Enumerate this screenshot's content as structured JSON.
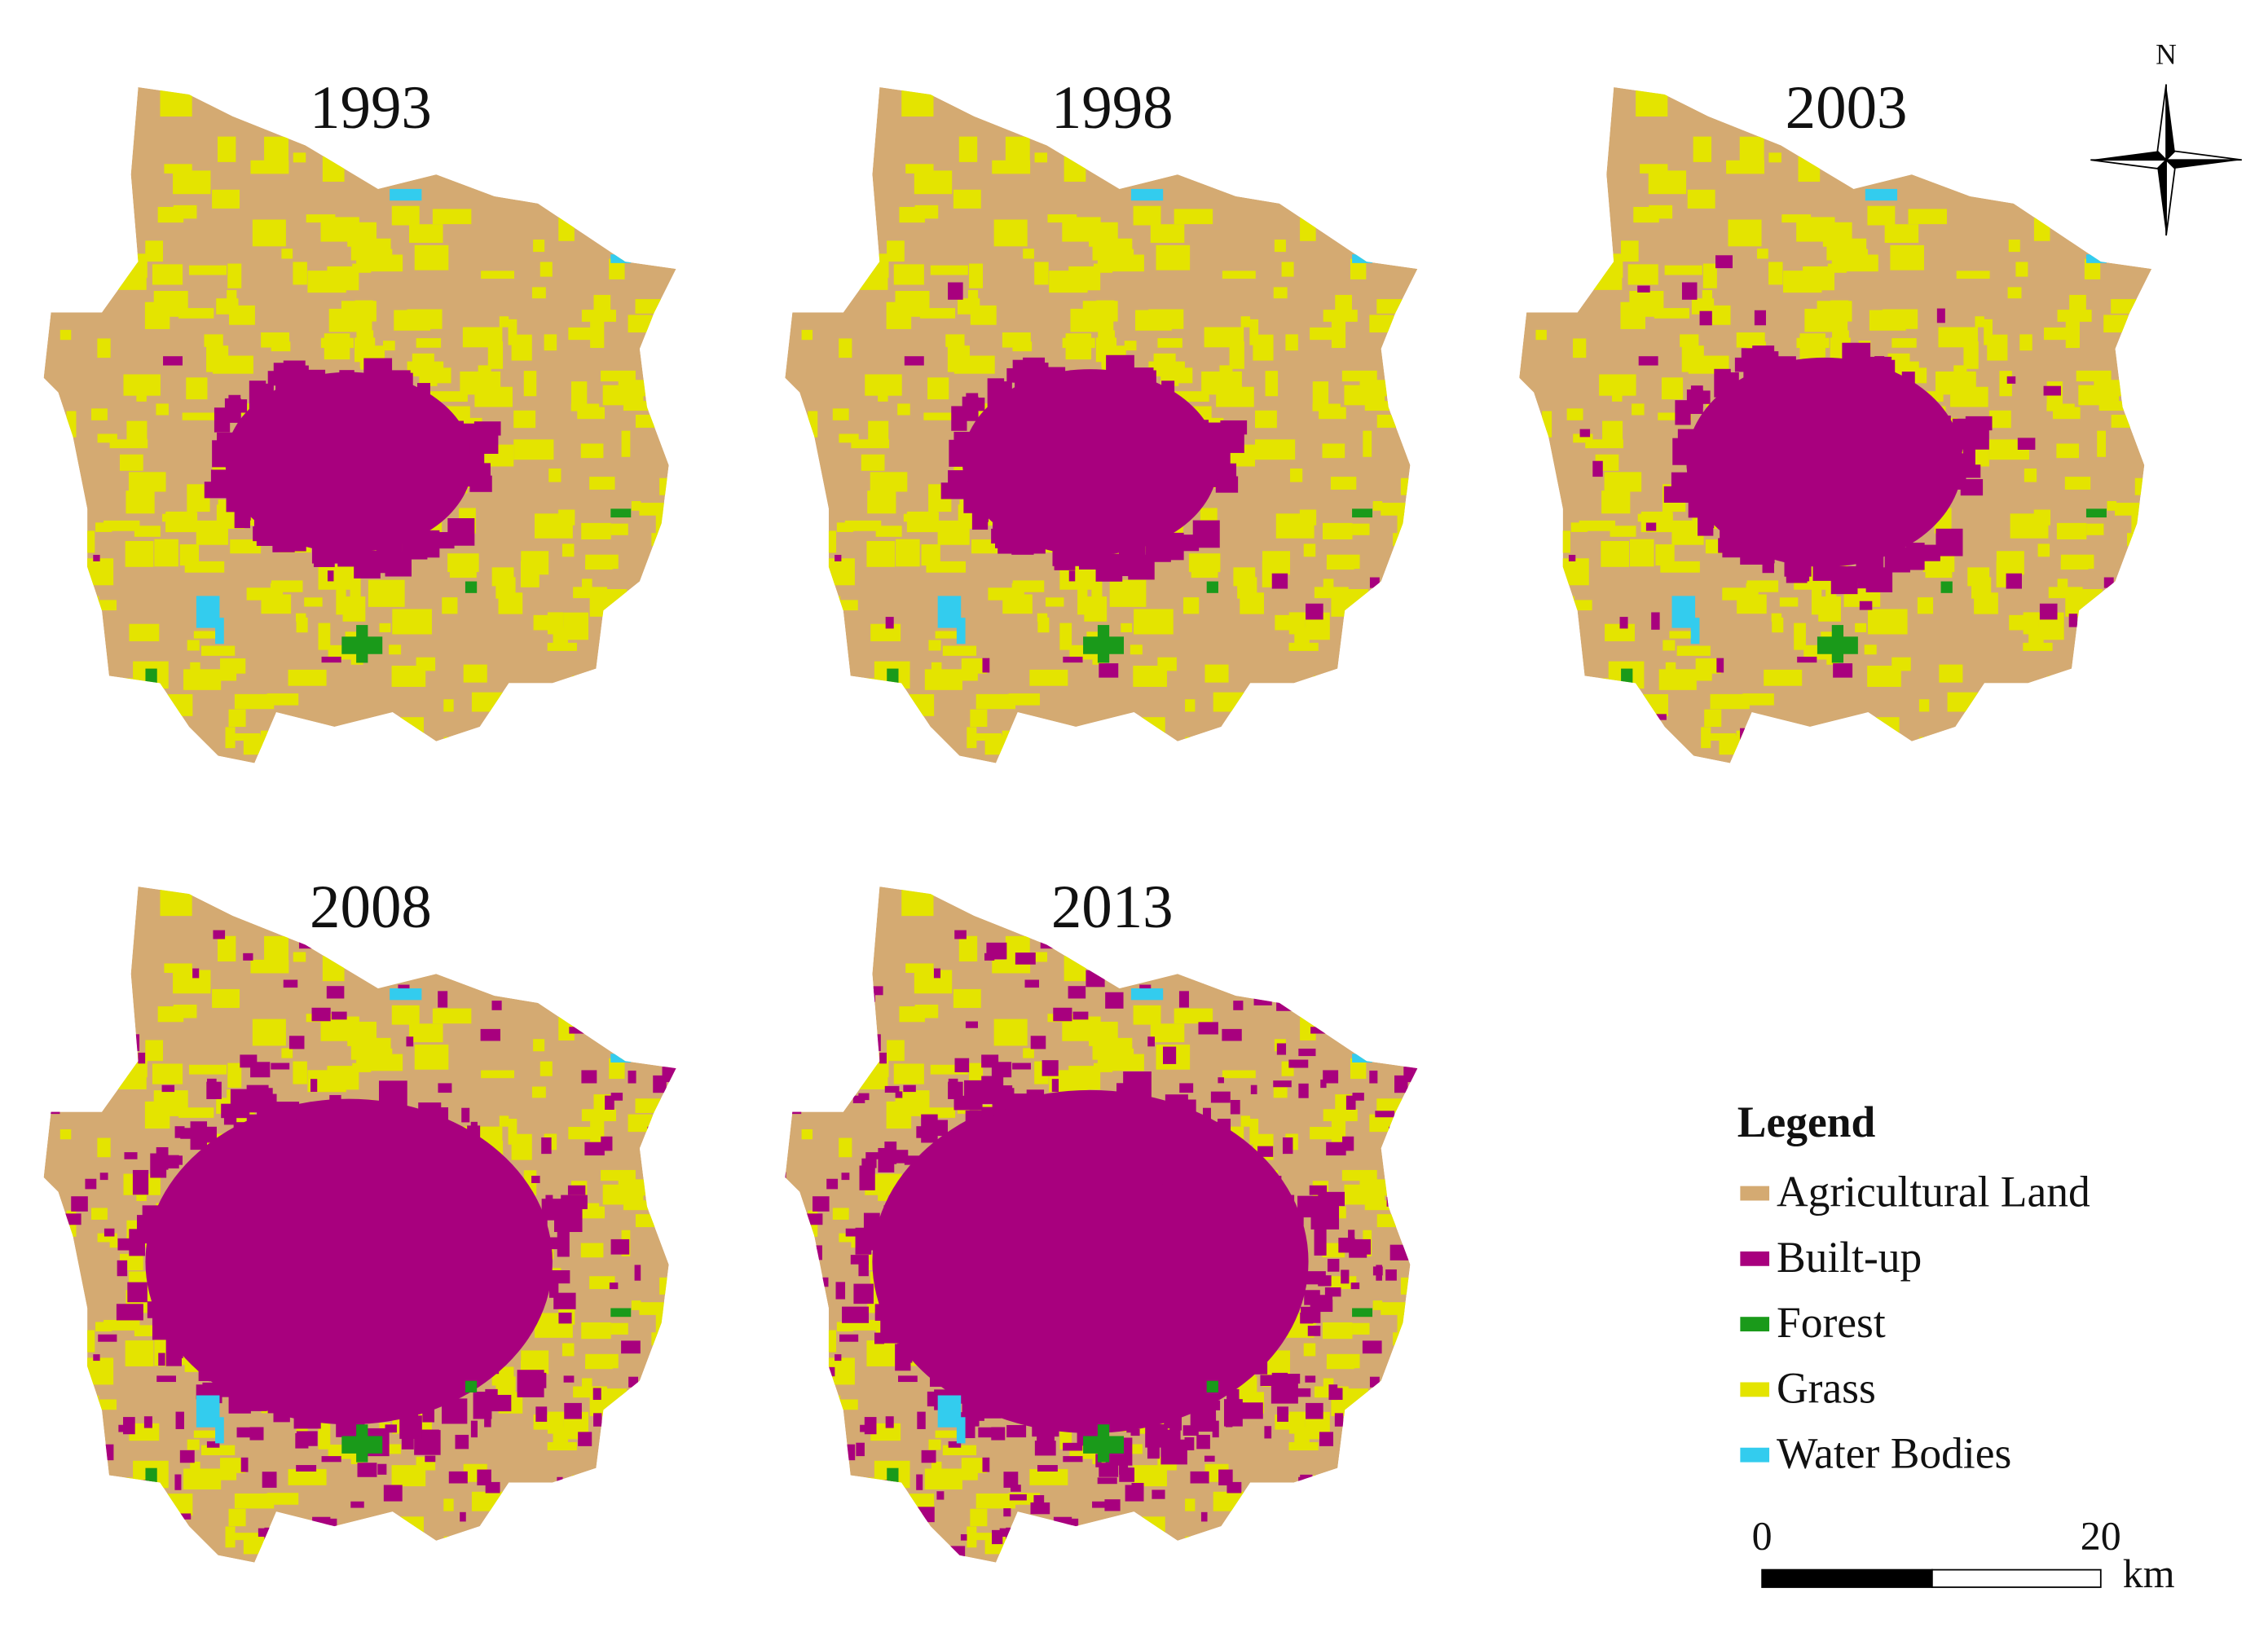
{
  "maps": [
    {
      "title": "1993"
    },
    {
      "title": "1998"
    },
    {
      "title": "2003"
    },
    {
      "title": "2008"
    },
    {
      "title": "2013"
    }
  ],
  "north_label": "N",
  "legend": {
    "title": "Legend",
    "items": [
      {
        "label": "Agricultural Land",
        "color": "#d4aa72"
      },
      {
        "label": "Built-up",
        "color": "#a8007e"
      },
      {
        "label": "Forest",
        "color": "#1a9a1a"
      },
      {
        "label": "Grass",
        "color": "#e4e400"
      },
      {
        "label": "Water Bodies",
        "color": "#33ccee"
      }
    ]
  },
  "scale_bar": {
    "labels": [
      "0",
      "20"
    ],
    "unit": "km"
  }
}
